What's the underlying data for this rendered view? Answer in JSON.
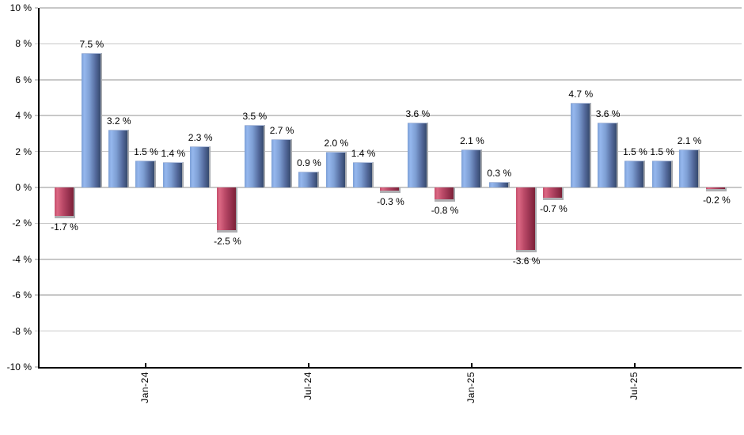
{
  "chart_data": {
    "type": "bar",
    "title": "",
    "xlabel": "",
    "ylabel": "",
    "ylim": [
      -10,
      10
    ],
    "grid": true,
    "legend": false,
    "y_ticks": [
      10,
      8,
      6,
      4,
      2,
      0,
      -2,
      -4,
      -6,
      -8,
      -10
    ],
    "y_tick_labels": [
      "10 %",
      "8 %",
      "6 %",
      "4 %",
      "2 %",
      "0 %",
      "-2 %",
      "-4 %",
      "-6 %",
      "-8 %",
      "-10 %"
    ],
    "x_tick_labels": [
      "Jan-24",
      "Jul-24",
      "Jan-25",
      "Jul-25"
    ],
    "x_tick_bar_indices": [
      3,
      9,
      15,
      21
    ],
    "values": [
      -1.7,
      7.5,
      3.2,
      1.5,
      1.4,
      2.3,
      -2.5,
      3.5,
      2.7,
      0.9,
      2.0,
      1.4,
      -0.3,
      3.6,
      -0.8,
      2.1,
      0.3,
      -3.6,
      -0.7,
      4.7,
      3.6,
      1.5,
      1.5,
      2.1,
      -0.2
    ],
    "bar_labels": [
      "-1.7 %",
      "7.5 %",
      "3.2 %",
      "1.5 %",
      "1.4 %",
      "2.3 %",
      "-2.5 %",
      "3.5 %",
      "2.7 %",
      "0.9 %",
      "2.0 %",
      "1.4 %",
      "-0.3 %",
      "3.6 %",
      "-0.8 %",
      "2.1 %",
      "0.3 %",
      "-3.6 %",
      "-0.7 %",
      "4.7 %",
      "3.6 %",
      "1.5 %",
      "1.5 %",
      "2.1 %",
      "-0.2 %"
    ],
    "colors": {
      "positive_bar_light": "#95b7ee",
      "positive_bar_dark": "#35496d",
      "negative_bar_light": "#db6883",
      "negative_bar_dark": "#7c2137",
      "gridline": "#c8c8c8",
      "axis": "#000000",
      "label_text": "#000000",
      "background": "#ffffff"
    }
  }
}
